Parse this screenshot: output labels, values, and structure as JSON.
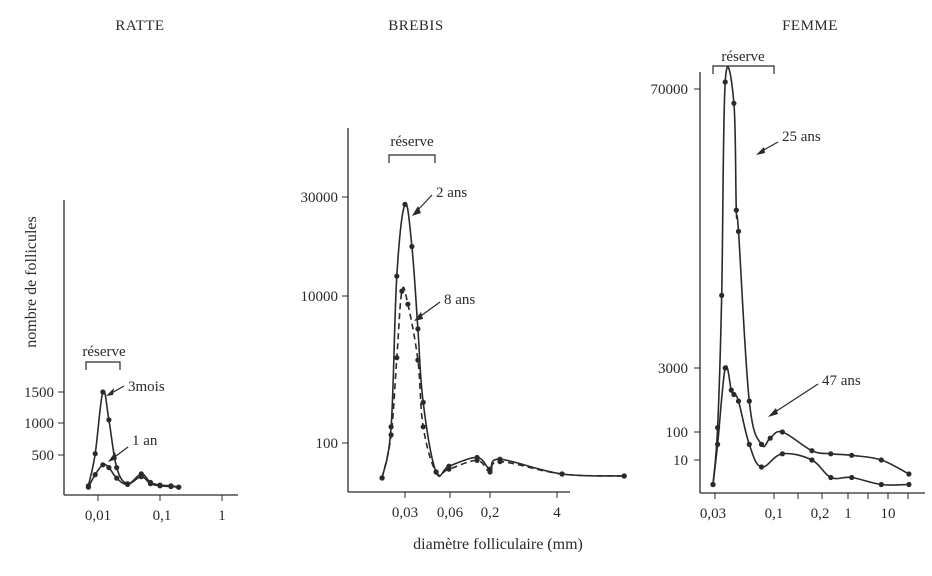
{
  "colors": {
    "ink": "#2a2a2a",
    "background": "#ffffff"
  },
  "y_axis_label": "nombre de follicules",
  "x_axis_label": "diamètre folliculaire (mm)",
  "chart_data": [
    {
      "type": "line",
      "title": "RATTE",
      "x_scale": "log",
      "x_ticks": [
        "0,01",
        "0,1",
        "1"
      ],
      "y_ticks": [
        "500",
        "1000",
        "1500"
      ],
      "bracket_label": "réserve",
      "series": [
        {
          "name": "3mois",
          "style": "solid",
          "points": [
            {
              "x": 0.007,
              "y": 60
            },
            {
              "x": 0.009,
              "y": 520
            },
            {
              "x": 0.012,
              "y": 1500
            },
            {
              "x": 0.015,
              "y": 1050
            },
            {
              "x": 0.02,
              "y": 320
            },
            {
              "x": 0.03,
              "y": 90
            },
            {
              "x": 0.05,
              "y": 230
            },
            {
              "x": 0.07,
              "y": 110
            },
            {
              "x": 0.1,
              "y": 70
            },
            {
              "x": 0.15,
              "y": 60
            },
            {
              "x": 0.2,
              "y": 40
            }
          ]
        },
        {
          "name": "1 an",
          "style": "solid",
          "points": [
            {
              "x": 0.007,
              "y": 40
            },
            {
              "x": 0.009,
              "y": 220
            },
            {
              "x": 0.012,
              "y": 360
            },
            {
              "x": 0.015,
              "y": 320
            },
            {
              "x": 0.02,
              "y": 170
            },
            {
              "x": 0.03,
              "y": 80
            },
            {
              "x": 0.05,
              "y": 190
            },
            {
              "x": 0.07,
              "y": 90
            },
            {
              "x": 0.1,
              "y": 60
            },
            {
              "x": 0.15,
              "y": 50
            },
            {
              "x": 0.2,
              "y": 40
            }
          ]
        }
      ]
    },
    {
      "type": "line",
      "title": "BREBIS",
      "x_scale": "log",
      "y_scale": "nonlinear",
      "x_ticks": [
        "0,03",
        "0,06",
        "0,2",
        "4"
      ],
      "y_ticks": [
        "100",
        "10000",
        "30000"
      ],
      "bracket_label": "réserve",
      "series": [
        {
          "name": "2 ans",
          "style": "solid",
          "points": [
            {
              "x": 0.018,
              "y": 20
            },
            {
              "x": 0.022,
              "y": 300
            },
            {
              "x": 0.025,
              "y": 14000
            },
            {
              "x": 0.03,
              "y": 28500
            },
            {
              "x": 0.035,
              "y": 20000
            },
            {
              "x": 0.04,
              "y": 6000
            },
            {
              "x": 0.045,
              "y": 600
            },
            {
              "x": 0.06,
              "y": 50
            },
            {
              "x": 0.08,
              "y": 60
            },
            {
              "x": 0.15,
              "y": 75
            },
            {
              "x": 0.2,
              "y": 55
            },
            {
              "x": 0.25,
              "y": 72
            },
            {
              "x": 1,
              "y": 40
            },
            {
              "x": 4,
              "y": 30
            }
          ]
        },
        {
          "name": "8 ans",
          "style": "dashed",
          "points": [
            {
              "x": 0.018,
              "y": 20
            },
            {
              "x": 0.022,
              "y": 200
            },
            {
              "x": 0.025,
              "y": 2500
            },
            {
              "x": 0.028,
              "y": 11000
            },
            {
              "x": 0.032,
              "y": 9000
            },
            {
              "x": 0.04,
              "y": 2200
            },
            {
              "x": 0.045,
              "y": 300
            },
            {
              "x": 0.06,
              "y": 50
            },
            {
              "x": 0.08,
              "y": 55
            },
            {
              "x": 0.15,
              "y": 70
            },
            {
              "x": 0.2,
              "y": 50
            },
            {
              "x": 0.25,
              "y": 68
            },
            {
              "x": 1,
              "y": 40
            },
            {
              "x": 4,
              "y": 30
            }
          ]
        }
      ]
    },
    {
      "type": "line",
      "title": "FEMME",
      "x_scale": "log",
      "y_scale": "nonlinear",
      "x_ticks": [
        "0,03",
        "0,1",
        "0,2",
        "1",
        "10"
      ],
      "y_ticks": [
        "10",
        "100",
        "3000",
        "70000"
      ],
      "bracket_label": "réserve",
      "series": [
        {
          "name": "25 ans",
          "style": "solid",
          "points": [
            {
              "x": 0.03,
              "y": 3
            },
            {
              "x": 0.035,
              "y": 300
            },
            {
              "x": 0.04,
              "y": 20000
            },
            {
              "x": 0.045,
              "y": 70000
            },
            {
              "x": 0.06,
              "y": 65000
            },
            {
              "x": 0.065,
              "y": 40000
            },
            {
              "x": 0.07,
              "y": 35000
            },
            {
              "x": 0.1,
              "y": 1500
            },
            {
              "x": 0.15,
              "y": 60
            },
            {
              "x": 0.2,
              "y": 80
            },
            {
              "x": 0.3,
              "y": 100
            },
            {
              "x": 0.8,
              "y": 40
            },
            {
              "x": 1.5,
              "y": 30
            },
            {
              "x": 3,
              "y": 25
            },
            {
              "x": 8,
              "y": 10
            },
            {
              "x": 20,
              "y": 6
            }
          ]
        },
        {
          "name": "47 ans",
          "style": "solid",
          "points": [
            {
              "x": 0.03,
              "y": 3
            },
            {
              "x": 0.035,
              "y": 60
            },
            {
              "x": 0.045,
              "y": 3000
            },
            {
              "x": 0.055,
              "y": 2000
            },
            {
              "x": 0.06,
              "y": 1800
            },
            {
              "x": 0.07,
              "y": 1500
            },
            {
              "x": 0.1,
              "y": 60
            },
            {
              "x": 0.15,
              "y": 8
            },
            {
              "x": 0.3,
              "y": 30
            },
            {
              "x": 0.8,
              "y": 10
            },
            {
              "x": 1.5,
              "y": 5
            },
            {
              "x": 3,
              "y": 5
            },
            {
              "x": 8,
              "y": 3
            },
            {
              "x": 20,
              "y": 3
            }
          ]
        }
      ]
    }
  ]
}
